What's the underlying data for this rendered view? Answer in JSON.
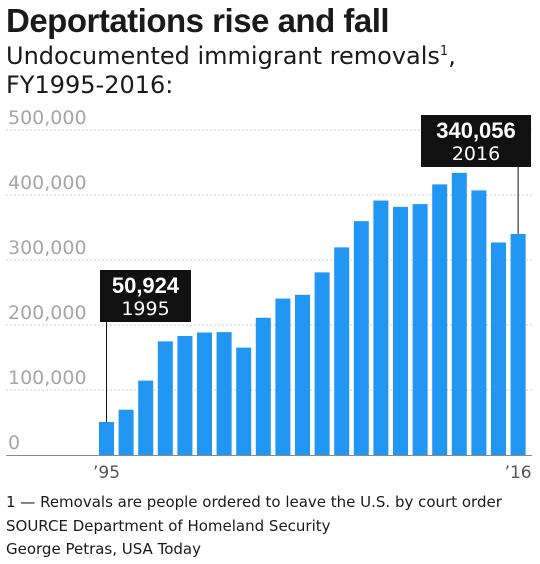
{
  "title": "Deportations rise and fall",
  "subtitle": {
    "text": "Undocumented immigrant removals",
    "superscript": "1",
    "line2": "FY1995-2016:"
  },
  "chart_data": {
    "type": "bar",
    "categories": [
      "1995",
      "1996",
      "1997",
      "1998",
      "1999",
      "2000",
      "2001",
      "2002",
      "2003",
      "2004",
      "2005",
      "2006",
      "2007",
      "2008",
      "2009",
      "2010",
      "2011",
      "2012",
      "2013",
      "2014",
      "2015",
      "2016"
    ],
    "values": [
      50924,
      69680,
      114432,
      174813,
      183114,
      188467,
      189026,
      165168,
      211098,
      240665,
      246431,
      280974,
      319382,
      359795,
      391438,
      381738,
      386020,
      416324,
      434015,
      407075,
      326962,
      340056
    ],
    "ylim": [
      0,
      500000
    ],
    "y_ticks": [
      0,
      100000,
      200000,
      300000,
      400000,
      500000
    ],
    "y_tick_labels": [
      "0",
      "100,000",
      "200,000",
      "300,000",
      "400,000",
      "500,000"
    ],
    "x_tick_labels": [
      {
        "category": "1995",
        "label": "’95"
      },
      {
        "category": "2016",
        "label": "’16"
      }
    ],
    "grid": true,
    "bar_color": "#2196f3",
    "annotations": [
      {
        "category": "1995",
        "value_label": "50,924",
        "year_label": "1995"
      },
      {
        "category": "2016",
        "value_label": "340,056",
        "year_label": "2016"
      }
    ]
  },
  "footnote": "1 — Removals are people ordered to leave the U.S. by court order",
  "source": "SOURCE Department of Homeland Security",
  "credit": "George Petras, USA Today"
}
